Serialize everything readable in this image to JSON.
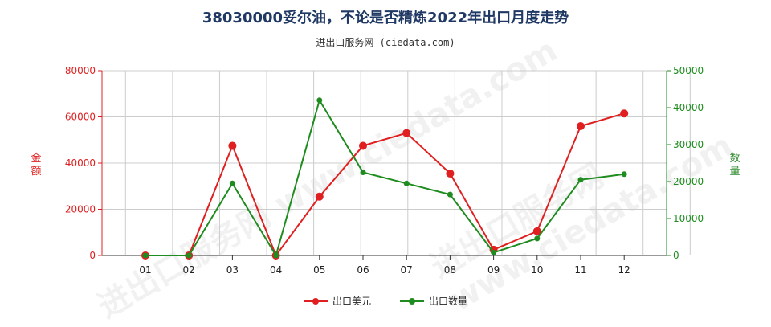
{
  "title": "38030000妥尔油，不论是否精炼2022年出口月度走势",
  "subtitle": "进出口服务网 (ciedata.com)",
  "watermark": "进出口服务网 www.ciedata.com",
  "colors": {
    "usd": "#e02020",
    "qty": "#1e8c1e",
    "grid": "#cccccc",
    "title": "#1f3864"
  },
  "chart_data": {
    "type": "line",
    "title": "38030000妥尔油，不论是否精炼2022年出口月度走势",
    "categories": [
      "01",
      "02",
      "03",
      "04",
      "05",
      "06",
      "07",
      "08",
      "09",
      "10",
      "11",
      "12"
    ],
    "y_left": {
      "label": "金额",
      "range": [
        0,
        80000
      ],
      "ticks": [
        0,
        20000,
        40000,
        60000,
        80000
      ]
    },
    "y_right": {
      "label": "数量",
      "range": [
        0,
        50000
      ],
      "ticks": [
        0,
        10000,
        20000,
        30000,
        40000,
        50000
      ]
    },
    "grid": true,
    "legend_position": "bottom-center",
    "series": [
      {
        "name": "出口美元",
        "axis": "left",
        "color": "#e02020",
        "values": [
          0,
          0,
          47500,
          0,
          25500,
          47500,
          53000,
          35500,
          2500,
          10500,
          56000,
          61500
        ]
      },
      {
        "name": "出口数量",
        "axis": "right",
        "color": "#1e8c1e",
        "values": [
          0,
          0,
          19500,
          0,
          42000,
          22500,
          19500,
          16500,
          800,
          4600,
          20500,
          22000
        ]
      }
    ]
  }
}
